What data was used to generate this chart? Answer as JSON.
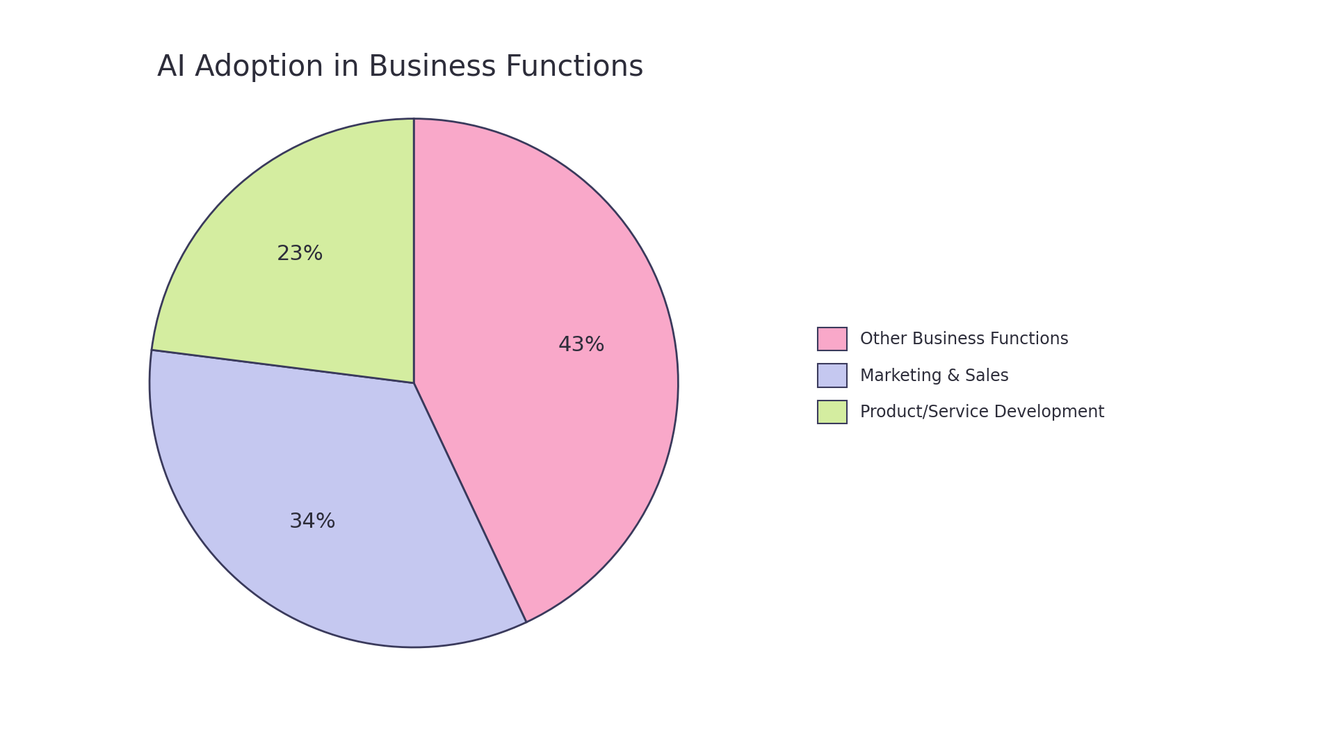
{
  "title": "AI Adoption in Business Functions",
  "slices": [
    43,
    34,
    23
  ],
  "labels": [
    "Other Business Functions",
    "Marketing & Sales",
    "Product/Service Development"
  ],
  "colors": [
    "#F9A8C9",
    "#C5C8F0",
    "#D4EDA0"
  ],
  "edge_color": "#3a3a5c",
  "edge_width": 2.0,
  "autopct_labels": [
    "43%",
    "34%",
    "23%"
  ],
  "background_color": "#ffffff",
  "title_fontsize": 30,
  "legend_fontsize": 17,
  "autopct_fontsize": 22,
  "startangle": 90,
  "pct_distance": 0.65
}
